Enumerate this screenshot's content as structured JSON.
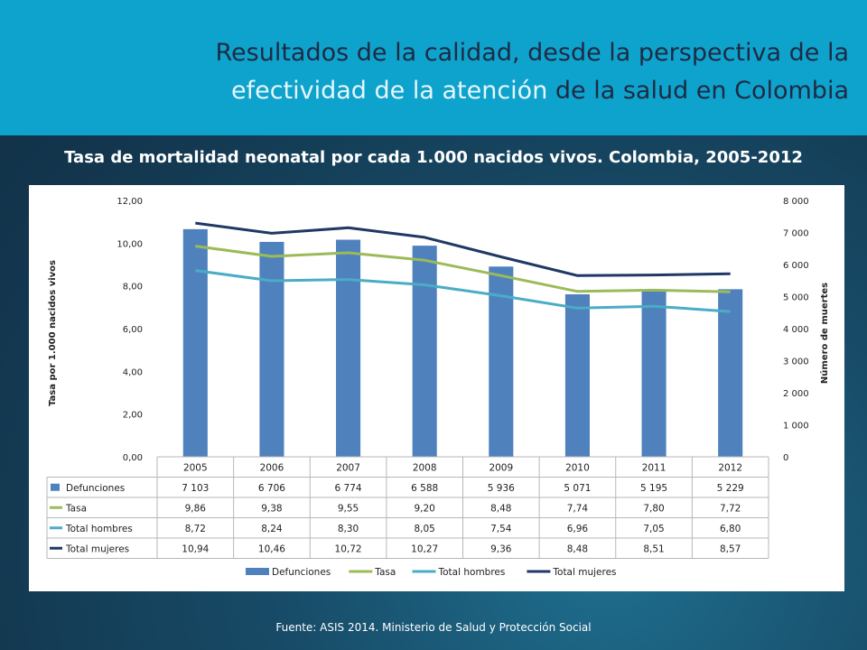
{
  "header": {
    "title_line1": "Resultados de la calidad, desde la perspectiva de la",
    "title_hl": "efectividad de la atención",
    "title_rest": " de la salud en Colombia"
  },
  "subtitle": "Tasa de mortalidad neonatal por cada 1.000 nacidos vivos. Colombia, 2005-2012",
  "source": "Fuente: ASIS 2014. Ministerio de Salud y Protección Social",
  "colors": {
    "defunciones": "#4f81bd",
    "tasa": "#9bbb59",
    "hombres": "#4bacc6",
    "mujeres": "#1f3864"
  },
  "chart_data": {
    "type": "bar",
    "combo": "bar + line, dual axis, with data table",
    "categories": [
      "2005",
      "2006",
      "2007",
      "2008",
      "2009",
      "2010",
      "2011",
      "2012"
    ],
    "ylabel": "Tasa por 1.000 nacidos vivos",
    "ylabel2": "Número de muertes",
    "ylim": [
      0,
      12
    ],
    "y2lim": [
      0,
      8000
    ],
    "yticks": [
      "0,00",
      "2,00",
      "4,00",
      "6,00",
      "8,00",
      "10,00",
      "12,00"
    ],
    "y2ticks": [
      "0",
      "1 000",
      "2 000",
      "3 000",
      "4 000",
      "5 000",
      "6 000",
      "7 000",
      "8 000"
    ],
    "series": [
      {
        "name": "Defunciones",
        "kind": "bar",
        "axis": "right",
        "values": [
          7103,
          6706,
          6774,
          6588,
          5936,
          5071,
          5195,
          5229
        ],
        "labels": [
          "7 103",
          "6 706",
          "6 774",
          "6 588",
          "5 936",
          "5 071",
          "5 195",
          "5 229"
        ]
      },
      {
        "name": "Tasa",
        "kind": "line",
        "axis": "left",
        "values": [
          9.86,
          9.38,
          9.55,
          9.2,
          8.48,
          7.74,
          7.8,
          7.72
        ],
        "labels": [
          "9,86",
          "9,38",
          "9,55",
          "9,20",
          "8,48",
          "7,74",
          "7,80",
          "7,72"
        ]
      },
      {
        "name": "Total hombres",
        "kind": "line",
        "axis": "left",
        "values": [
          8.72,
          8.24,
          8.3,
          8.05,
          7.54,
          6.96,
          7.05,
          6.8
        ],
        "labels": [
          "8,72",
          "8,24",
          "8,30",
          "8,05",
          "7,54",
          "6,96",
          "7,05",
          "6,80"
        ]
      },
      {
        "name": "Total mujeres",
        "kind": "line",
        "axis": "left",
        "values": [
          10.94,
          10.46,
          10.72,
          10.27,
          9.36,
          8.48,
          8.51,
          8.57
        ],
        "labels": [
          "10,94",
          "10,46",
          "10,72",
          "10,27",
          "9,36",
          "8,48",
          "8,51",
          "8,57"
        ]
      }
    ],
    "legend_position": "bottom",
    "grid": false
  }
}
